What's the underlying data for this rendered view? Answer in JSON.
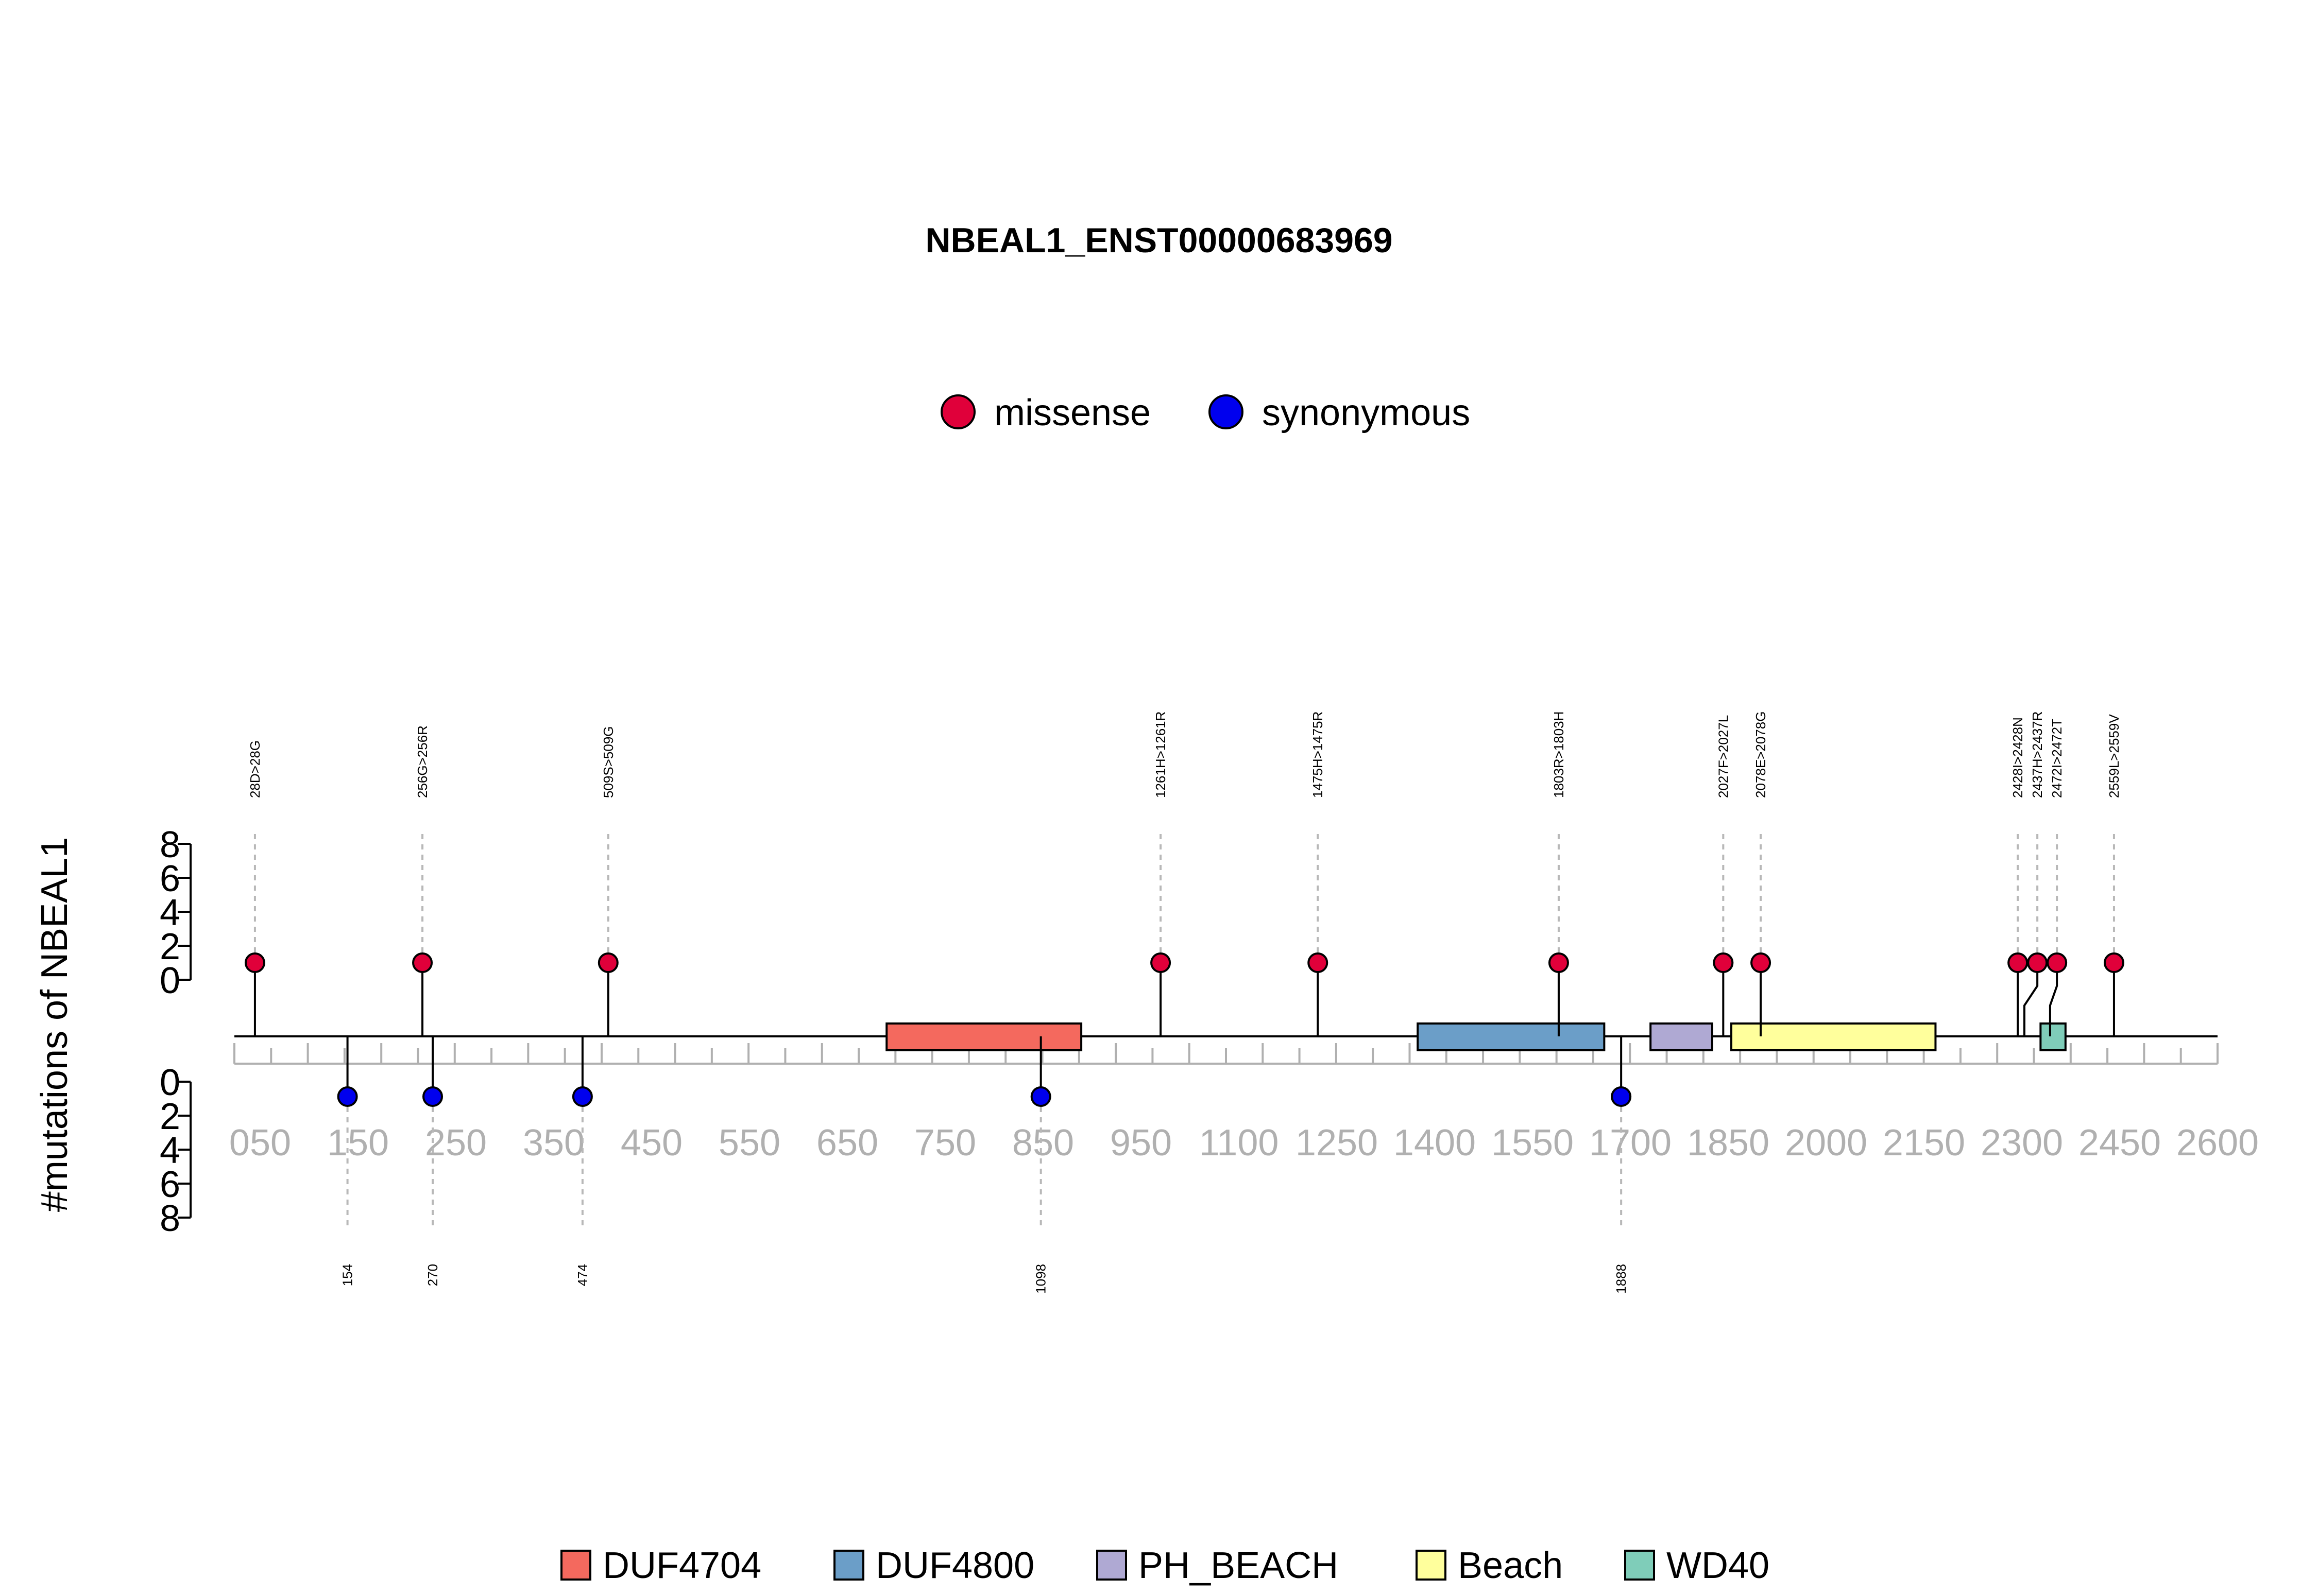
{
  "chart_data": {
    "type": "lollipop",
    "title": "NBEAL1_ENST00000683969",
    "ylabel": "#mutations of NBEAL1",
    "protein_length": 2694,
    "xlim": [
      0,
      2700
    ],
    "x_tick_labels": [
      "050",
      "150",
      "250",
      "350",
      "450",
      "550",
      "650",
      "750",
      "850",
      "950",
      "1100",
      "1250",
      "1400",
      "1550",
      "1700",
      "1850",
      "2000",
      "2150",
      "2300",
      "2450",
      "2600"
    ],
    "y_tick_labels": [
      "0",
      "2",
      "4",
      "6",
      "8"
    ],
    "ylim": [
      0,
      8
    ],
    "mutation_legend": [
      {
        "name": "missense",
        "color": "#e0003a"
      },
      {
        "name": "synonymous",
        "color": "#0000ee"
      }
    ],
    "missense": [
      {
        "position": 28,
        "count": 1,
        "label": "28D>28G"
      },
      {
        "position": 256,
        "count": 1,
        "label": "256G>256R"
      },
      {
        "position": 509,
        "count": 1,
        "label": "509S>509G"
      },
      {
        "position": 1261,
        "count": 1,
        "label": "1261H>1261R"
      },
      {
        "position": 1475,
        "count": 1,
        "label": "1475H>1475R"
      },
      {
        "position": 1803,
        "count": 1,
        "label": "1803R>1803H"
      },
      {
        "position": 2027,
        "count": 1,
        "label": "2027F>2027L"
      },
      {
        "position": 2078,
        "count": 1,
        "label": "2078E>2078G"
      },
      {
        "position": 2428,
        "count": 1,
        "label": "2428I>2428N"
      },
      {
        "position": 2437,
        "count": 1,
        "label": "2437H>2437R"
      },
      {
        "position": 2472,
        "count": 1,
        "label": "2472I>2472T"
      },
      {
        "position": 2559,
        "count": 1,
        "label": "2559L>2559V"
      }
    ],
    "synonymous": [
      {
        "position": 154,
        "count": 1,
        "label": "154"
      },
      {
        "position": 270,
        "count": 1,
        "label": "270"
      },
      {
        "position": 474,
        "count": 1,
        "label": "474"
      },
      {
        "position": 1098,
        "count": 1,
        "label": "1098"
      },
      {
        "position": 1888,
        "count": 1,
        "label": "1888"
      }
    ],
    "domains": [
      {
        "name": "DUF4704",
        "start": 888,
        "end": 1153,
        "color": "#f4695e"
      },
      {
        "name": "DUF4800",
        "start": 1611,
        "end": 1865,
        "color": "#6b9ec8"
      },
      {
        "name": "PH_BEACH",
        "start": 1928,
        "end": 2012,
        "color": "#afa9d3"
      },
      {
        "name": "Beach",
        "start": 2038,
        "end": 2316,
        "color": "#ffff9c"
      },
      {
        "name": "WD40",
        "start": 2459,
        "end": 2493,
        "color": "#7fcdb9"
      }
    ]
  }
}
